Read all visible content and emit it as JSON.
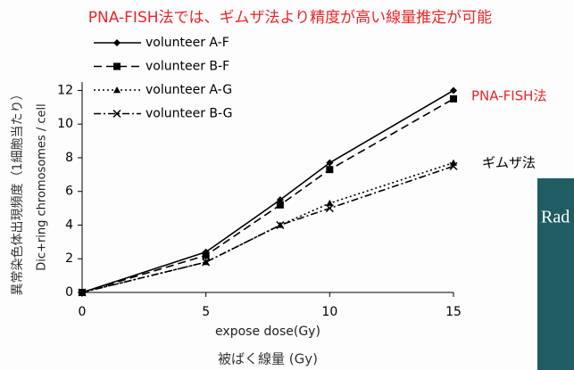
{
  "chart_data": {
    "type": "line",
    "title": "PNA-FISH法では、ギムザ法より精度が高い線量推定が可能",
    "y_label_ja": "異常染色体出現頻度（1細胞当たり）",
    "y_label": "Dic+ring chromosomes / cell",
    "x_label": "expose dose(Gy)",
    "x_label_ja": "被ばく線量 (Gy)",
    "annotations": [
      {
        "text": "PNA-FISH法",
        "color": "#e8262a"
      },
      {
        "text": "ギムザ法",
        "color": "#000000"
      }
    ],
    "cover_label": "Rad",
    "x": [
      0,
      5,
      8,
      10,
      15
    ],
    "series": [
      {
        "name": "volunteer A-F",
        "color": "#000000",
        "dash": "solid",
        "marker": "diamond",
        "values": [
          0,
          2.4,
          5.5,
          7.7,
          12.0
        ]
      },
      {
        "name": "volunteer B-F",
        "color": "#000000",
        "dash": "dashed",
        "marker": "square",
        "values": [
          0,
          2.2,
          5.2,
          7.3,
          11.5
        ]
      },
      {
        "name": "volunteer A-G",
        "color": "#000000",
        "dash": "dotted",
        "marker": "triangle",
        "values": [
          0,
          1.8,
          4.0,
          5.3,
          7.7
        ]
      },
      {
        "name": "volunteer B-G",
        "color": "#000000",
        "dash": "dashdot",
        "marker": "x",
        "values": [
          0,
          1.8,
          4.0,
          5.0,
          7.5
        ]
      }
    ],
    "xlim": [
      0,
      15
    ],
    "xticks": [
      0,
      5,
      10,
      15
    ],
    "ylim": [
      0,
      12.5
    ],
    "yticks": [
      0,
      2,
      4,
      6,
      8,
      10,
      12
    ],
    "grid": false,
    "legend": "top-left"
  }
}
